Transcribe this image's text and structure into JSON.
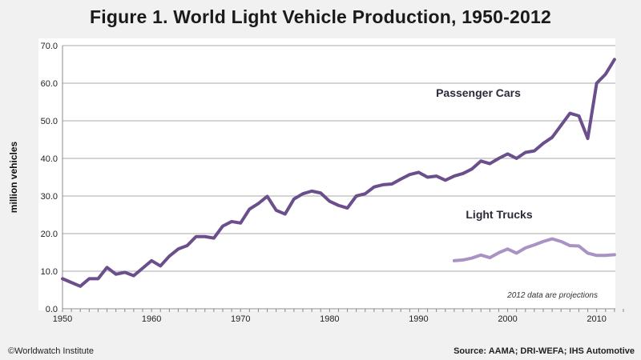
{
  "chart_data": {
    "type": "line",
    "title": "Figure 1. World Light Vehicle Production, 1950-2012",
    "xlabel": "",
    "ylabel": "million vehicles",
    "xlim": [
      1950,
      2012
    ],
    "ylim": [
      0,
      70
    ],
    "x_ticks": [
      "1950",
      "1960",
      "1970",
      "1980",
      "1990",
      "2000",
      "2010"
    ],
    "y_ticks": [
      "0.0",
      "10.0",
      "20.0",
      "30.0",
      "40.0",
      "50.0",
      "60.0",
      "70.0"
    ],
    "grid": "horizontal",
    "series": [
      {
        "name": "Passenger Cars",
        "color": "#6a4f8c",
        "x_start": 1950,
        "values": [
          8.0,
          7.0,
          6.0,
          8.0,
          8.0,
          11.0,
          9.2,
          9.7,
          8.8,
          10.8,
          12.8,
          11.4,
          14.0,
          15.9,
          16.8,
          19.2,
          19.2,
          18.8,
          22.0,
          23.2,
          22.8,
          26.5,
          28.0,
          29.9,
          26.2,
          25.2,
          29.2,
          30.6,
          31.3,
          30.8,
          28.6,
          27.5,
          26.8,
          30.0,
          30.6,
          32.4,
          33.0,
          33.2,
          34.5,
          35.7,
          36.3,
          35.0,
          35.3,
          34.2,
          35.3,
          36.0,
          37.2,
          39.3,
          38.6,
          40.0,
          41.2,
          40.0,
          41.6,
          42.0,
          44.0,
          45.6,
          48.8,
          52.0,
          51.3,
          45.3,
          60.0,
          62.4,
          66.3
        ]
      },
      {
        "name": "Light Trucks",
        "color": "#a993c4",
        "x_start": 1994,
        "values": [
          12.8,
          13.0,
          13.5,
          14.3,
          13.6,
          14.9,
          15.9,
          14.8,
          16.2,
          17.0,
          17.9,
          18.6,
          17.9,
          16.8,
          16.7,
          14.8,
          14.2,
          14.2,
          14.4
        ]
      }
    ],
    "annotations": [
      "2012 data are projections"
    ]
  },
  "footer": {
    "credit": "©Worldwatch Institute",
    "source": "Source: AAMA; DRI-WEFA; IHS Automotive"
  }
}
